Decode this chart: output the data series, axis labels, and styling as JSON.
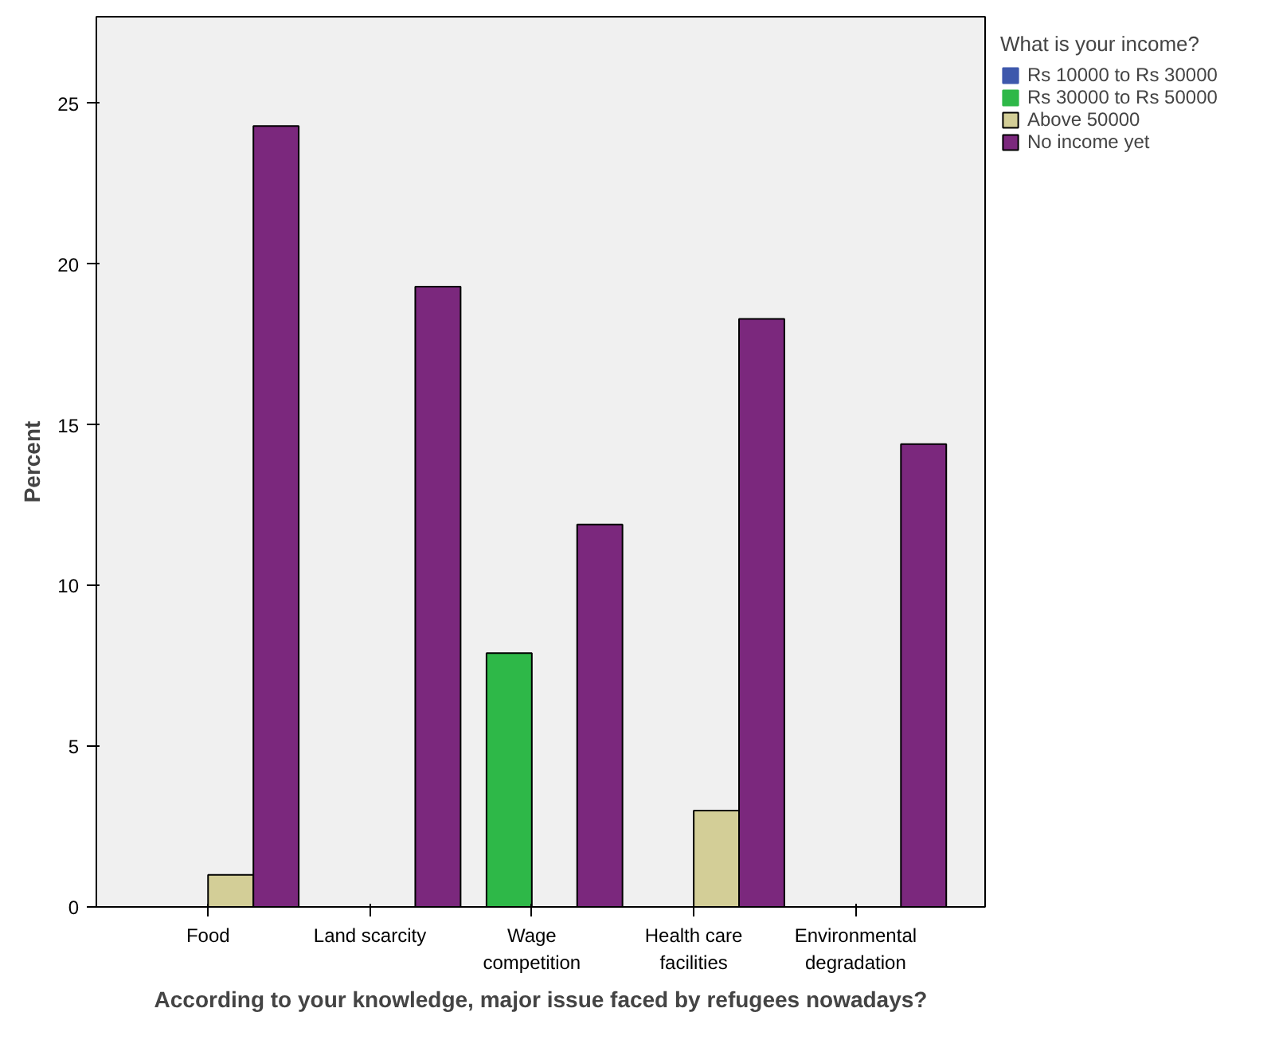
{
  "chart_data": {
    "type": "bar",
    "xlabel": "According to your knowledge, major issue faced by refugees nowadays?",
    "ylabel": "Percent",
    "legend_title": "What is your income?",
    "categories": [
      "Food",
      "Land scarcity",
      "Wage competition",
      "Health care facilities",
      "Environmental degradation"
    ],
    "series": [
      {
        "name": "Rs 10000 to Rs 30000",
        "color": "#3e58ac",
        "values": [
          0,
          0,
          0,
          0,
          0
        ]
      },
      {
        "name": "Rs 30000 to Rs 50000",
        "color": "#2eb848",
        "values": [
          0,
          0,
          7.9,
          0,
          0
        ]
      },
      {
        "name": "Above 50000",
        "color": "#d3ce97",
        "values": [
          1.0,
          0,
          0,
          3.0,
          0
        ]
      },
      {
        "name": "No income yet",
        "color": "#7b287d",
        "values": [
          24.3,
          19.3,
          11.9,
          18.3,
          14.4
        ]
      }
    ],
    "ylim": [
      0,
      27.7
    ],
    "yticks": [
      0,
      5,
      10,
      15,
      20,
      25
    ],
    "grid": false,
    "legend": "top right"
  }
}
